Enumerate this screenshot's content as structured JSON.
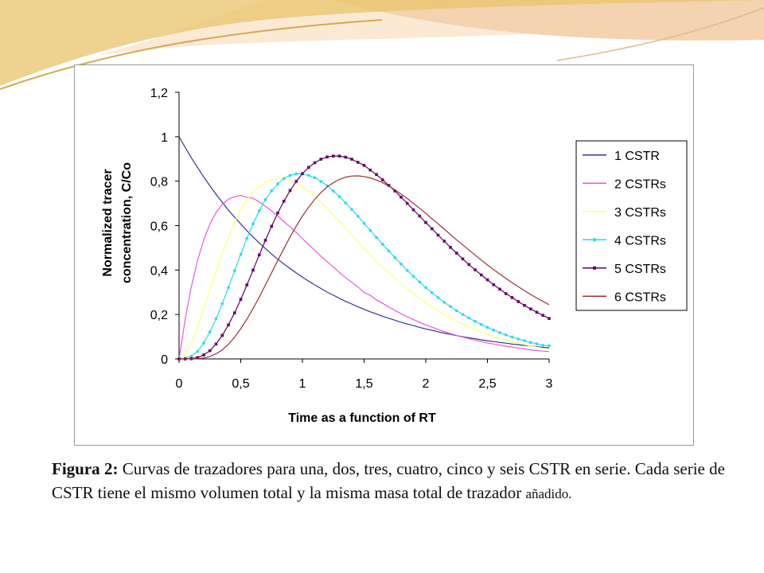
{
  "colors": {
    "deco_gold": "#e9c36b",
    "deco_peach": "#f3d3b0",
    "deco_light": "#fbe9d4"
  },
  "chart_data": {
    "type": "line",
    "title": "",
    "xlabel": "Time as a function of RT",
    "ylabel_lines": [
      "Normalized tracer",
      "concentration, C/Co"
    ],
    "xlim": [
      0,
      3
    ],
    "ylim": [
      0,
      1.2
    ],
    "x_ticks": [
      "0",
      "0,5",
      "1",
      "1,5",
      "2",
      "2,5",
      "3"
    ],
    "y_ticks": [
      "0",
      "0,2",
      "0,4",
      "0,6",
      "0,8",
      "1",
      "1,2"
    ],
    "grid": false,
    "legend_position": "right",
    "x": [
      0,
      0.05,
      0.1,
      0.15,
      0.2,
      0.25,
      0.3,
      0.35,
      0.4,
      0.45,
      0.5,
      0.55,
      0.6,
      0.65,
      0.7,
      0.75,
      0.8,
      0.85,
      0.9,
      0.95,
      1.0,
      1.05,
      1.1,
      1.15,
      1.2,
      1.25,
      1.3,
      1.35,
      1.4,
      1.45,
      1.5,
      1.55,
      1.6,
      1.65,
      1.7,
      1.75,
      1.8,
      1.85,
      1.9,
      1.95,
      2.0,
      2.05,
      2.1,
      2.15,
      2.2,
      2.25,
      2.3,
      2.35,
      2.4,
      2.45,
      2.5,
      2.55,
      2.6,
      2.65,
      2.7,
      2.75,
      2.8,
      2.85,
      2.9,
      2.95,
      3.0
    ],
    "series": [
      {
        "name": "1 CSTR",
        "color": "#33339a",
        "marker": "none",
        "values": [
          1.0,
          0.951,
          0.905,
          0.861,
          0.819,
          0.779,
          0.741,
          0.705,
          0.67,
          0.638,
          0.607,
          0.577,
          0.549,
          0.522,
          0.497,
          0.472,
          0.449,
          0.427,
          0.407,
          0.387,
          0.368,
          0.35,
          0.333,
          0.317,
          0.301,
          0.287,
          0.273,
          0.259,
          0.247,
          0.235,
          0.223,
          0.212,
          0.202,
          0.192,
          0.183,
          0.174,
          0.165,
          0.157,
          0.15,
          0.142,
          0.135,
          0.129,
          0.122,
          0.116,
          0.111,
          0.105,
          0.1,
          0.095,
          0.091,
          0.086,
          0.082,
          0.078,
          0.074,
          0.071,
          0.067,
          0.064,
          0.061,
          0.058,
          0.055,
          0.052,
          0.05
        ]
      },
      {
        "name": "2 CSTRs",
        "color": "#ee55dd",
        "marker": "none",
        "values": [
          0.0,
          0.181,
          0.327,
          0.444,
          0.536,
          0.607,
          0.659,
          0.696,
          0.719,
          0.73,
          0.736,
          0.728,
          0.723,
          0.707,
          0.687,
          0.666,
          0.644,
          0.618,
          0.595,
          0.569,
          0.541,
          0.515,
          0.489,
          0.462,
          0.438,
          0.414,
          0.389,
          0.366,
          0.345,
          0.324,
          0.299,
          0.286,
          0.266,
          0.25,
          0.234,
          0.218,
          0.203,
          0.19,
          0.177,
          0.165,
          0.153,
          0.143,
          0.132,
          0.123,
          0.114,
          0.106,
          0.098,
          0.091,
          0.084,
          0.078,
          0.072,
          0.067,
          0.062,
          0.057,
          0.053,
          0.049,
          0.045,
          0.041,
          0.038,
          0.035,
          0.033
        ]
      },
      {
        "name": "3 CSTRs",
        "color": "#ffff77",
        "marker": "none",
        "values": [
          0.0,
          0.019,
          0.071,
          0.144,
          0.228,
          0.315,
          0.396,
          0.476,
          0.543,
          0.618,
          0.67,
          0.714,
          0.75,
          0.776,
          0.795,
          0.806,
          0.811,
          0.81,
          0.803,
          0.791,
          0.775,
          0.755,
          0.731,
          0.706,
          0.678,
          0.649,
          0.619,
          0.588,
          0.558,
          0.527,
          0.498,
          0.469,
          0.437,
          0.413,
          0.387,
          0.363,
          0.338,
          0.316,
          0.294,
          0.273,
          0.253,
          0.235,
          0.217,
          0.2,
          0.185,
          0.17,
          0.157,
          0.144,
          0.132,
          0.121,
          0.111,
          0.101,
          0.093,
          0.085,
          0.077,
          0.07,
          0.064,
          0.058,
          0.053,
          0.048,
          0.045
        ]
      },
      {
        "name": "4 CSTRs",
        "color": "#22ddee",
        "marker": "dot",
        "values": [
          0.0,
          0.002,
          0.012,
          0.034,
          0.072,
          0.122,
          0.181,
          0.249,
          0.321,
          0.397,
          0.471,
          0.543,
          0.608,
          0.667,
          0.717,
          0.757,
          0.788,
          0.812,
          0.826,
          0.833,
          0.833,
          0.826,
          0.816,
          0.799,
          0.78,
          0.756,
          0.73,
          0.702,
          0.673,
          0.642,
          0.61,
          0.579,
          0.547,
          0.516,
          0.486,
          0.456,
          0.427,
          0.398,
          0.372,
          0.346,
          0.321,
          0.298,
          0.276,
          0.255,
          0.236,
          0.217,
          0.2,
          0.184,
          0.169,
          0.155,
          0.142,
          0.13,
          0.118,
          0.108,
          0.099,
          0.09,
          0.082,
          0.074,
          0.068,
          0.061,
          0.06
        ]
      },
      {
        "name": "5 CSTRs",
        "color": "#660066",
        "marker": "square",
        "values": [
          0.0,
          0.0,
          0.001,
          0.006,
          0.018,
          0.037,
          0.067,
          0.106,
          0.153,
          0.207,
          0.268,
          0.333,
          0.4,
          0.468,
          0.534,
          0.597,
          0.657,
          0.71,
          0.758,
          0.799,
          0.834,
          0.862,
          0.883,
          0.899,
          0.909,
          0.913,
          0.913,
          0.908,
          0.899,
          0.885,
          0.871,
          0.85,
          0.83,
          0.806,
          0.781,
          0.756,
          0.728,
          0.7,
          0.671,
          0.643,
          0.614,
          0.586,
          0.557,
          0.53,
          0.502,
          0.476,
          0.45,
          0.425,
          0.401,
          0.378,
          0.356,
          0.334,
          0.314,
          0.294,
          0.276,
          0.258,
          0.241,
          0.225,
          0.21,
          0.196,
          0.182
        ]
      },
      {
        "name": "6 CSTRs",
        "color": "#993333",
        "marker": "none",
        "values": [
          0.0,
          0.0,
          0.0,
          0.001,
          0.004,
          0.011,
          0.023,
          0.041,
          0.066,
          0.098,
          0.136,
          0.179,
          0.227,
          0.278,
          0.333,
          0.388,
          0.443,
          0.497,
          0.549,
          0.598,
          0.643,
          0.683,
          0.718,
          0.749,
          0.774,
          0.793,
          0.808,
          0.818,
          0.823,
          0.824,
          0.821,
          0.815,
          0.805,
          0.793,
          0.778,
          0.761,
          0.742,
          0.722,
          0.7,
          0.678,
          0.655,
          0.631,
          0.608,
          0.584,
          0.56,
          0.536,
          0.513,
          0.49,
          0.467,
          0.445,
          0.423,
          0.402,
          0.382,
          0.362,
          0.343,
          0.325,
          0.307,
          0.29,
          0.274,
          0.259,
          0.244
        ]
      }
    ]
  },
  "caption": {
    "lead": "Figura 2:",
    "body": " Curvas de trazadores para una, dos, tres, cuatro, cinco y seis CSTR en serie. Cada serie de CSTR tiene el mismo volumen total y la misma masa total de trazador ",
    "tail": "añadido."
  }
}
